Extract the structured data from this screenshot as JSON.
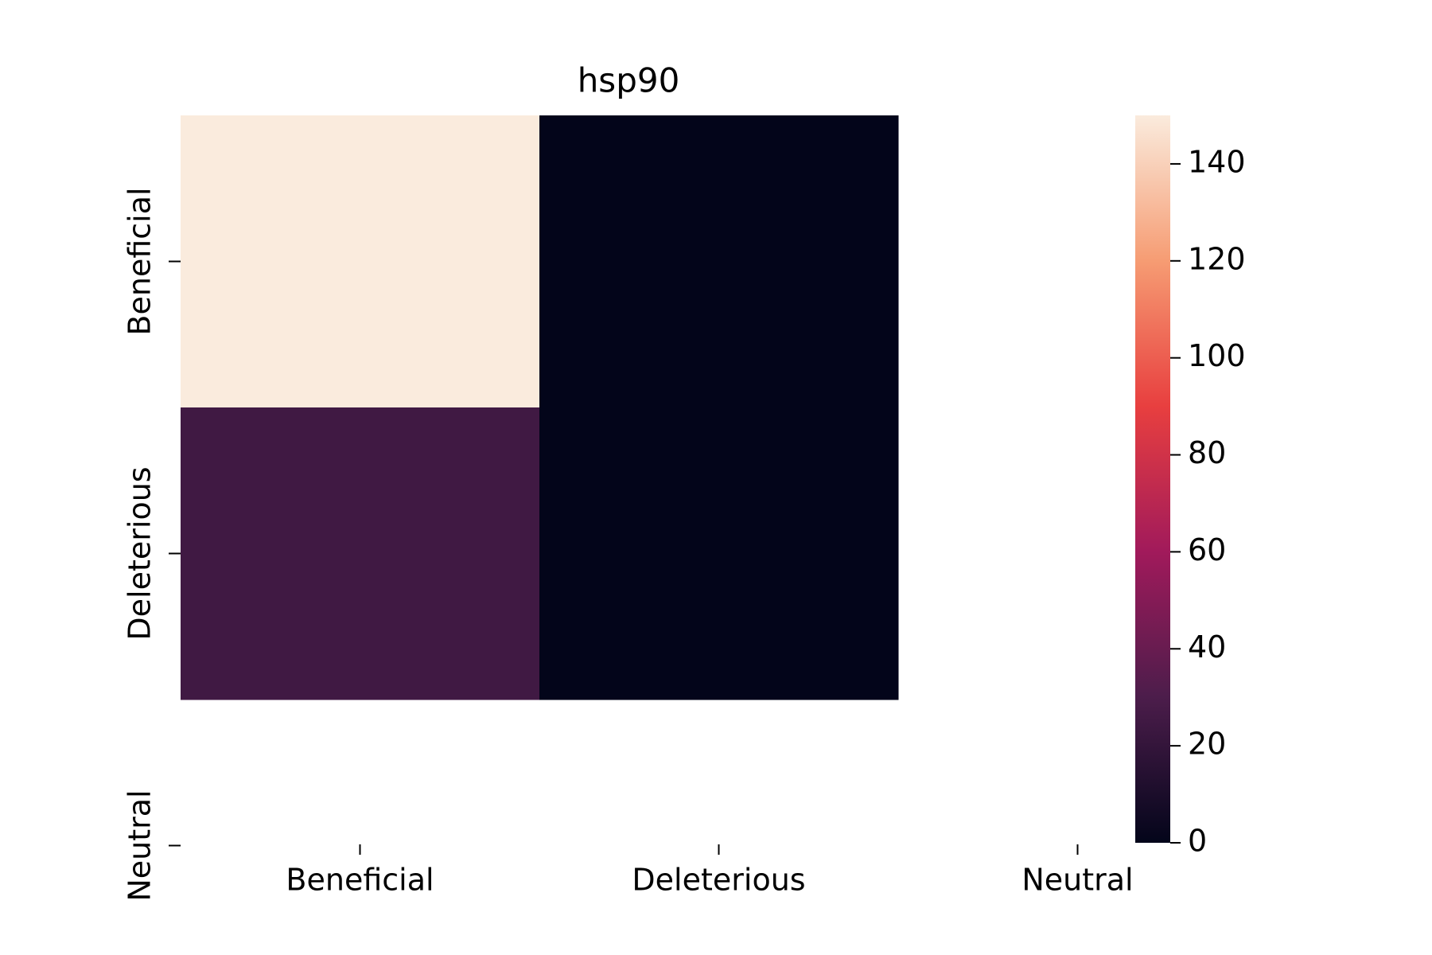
{
  "chart_data": {
    "type": "heatmap",
    "title": "hsp90",
    "x": [
      "Beneficial",
      "Deleterious",
      "Neutral"
    ],
    "y": [
      "Beneficial",
      "Deleterious",
      "Neutral"
    ],
    "z": [
      [
        150,
        0,
        null
      ],
      [
        25,
        0,
        null
      ],
      [
        null,
        null,
        null
      ]
    ],
    "clim": [
      0,
      150
    ],
    "cticks": [
      0,
      20,
      40,
      60,
      80,
      100,
      120,
      140
    ],
    "colorscale": [
      "#03051a",
      "#4c1d4b",
      "#a11a5b",
      "#e83f3f",
      "#f69c73",
      "#faebdd"
    ]
  }
}
